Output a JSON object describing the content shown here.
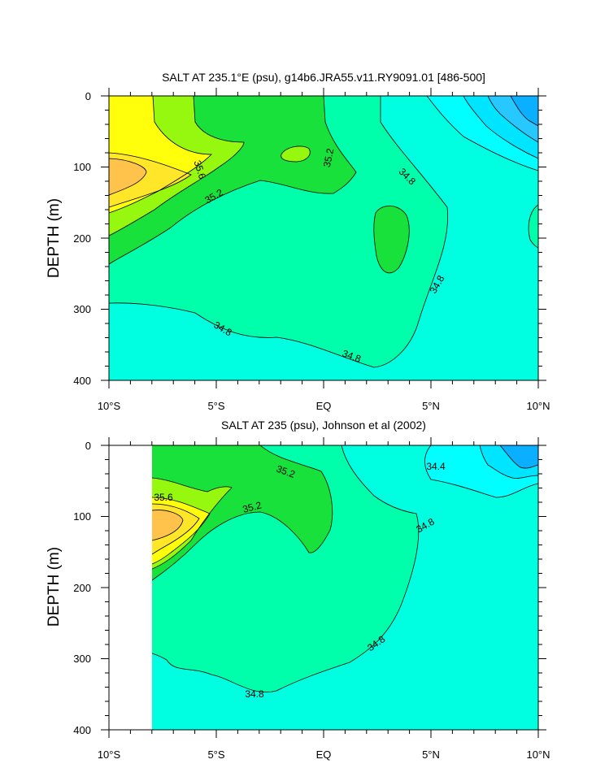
{
  "chart_data": [
    {
      "type": "contour",
      "title": "SALT AT 235.1°E (psu), g14b6.JRA55.v11.RY9091.01 [486-500]",
      "ylabel": "DEPTH (m)",
      "xlabel": "",
      "x_ticks": [
        "10°S",
        "5°S",
        "EQ",
        "5°N",
        "10°N"
      ],
      "x_tick_values": [
        -10,
        -5,
        0,
        5,
        10
      ],
      "y_ticks": [
        "0",
        "100",
        "200",
        "300",
        "400"
      ],
      "y_tick_values": [
        0,
        100,
        200,
        300,
        400
      ],
      "xlim": [
        -10,
        10
      ],
      "ylim": [
        400,
        0
      ],
      "y_reversed": true,
      "contour_interval": 0.2,
      "contour_labels": [
        "35.6",
        "35.2",
        "35.2",
        "34.8",
        "34.8",
        "34.8",
        "34.8"
      ],
      "colors": {
        "35.8+": "#FFC24A",
        "35.6-35.8": "#FFE629",
        "35.4-35.6": "#FFFF0C",
        "35.2-35.4": "#96F80F",
        "35.0-35.2": "#17E13A",
        "34.8-35.0": "#00FFAA",
        "34.6-34.8": "#00FFE0",
        "34.4-34.6": "#00FFFF",
        "34.2-34.4": "#00E5FF",
        "34.0-34.2": "#26C8FF",
        "<34.0": "#0AAFFF"
      }
    },
    {
      "type": "contour",
      "title": "SALT AT 235 (psu), Johnson et al (2002)",
      "ylabel": "DEPTH (m)",
      "xlabel": "",
      "x_ticks": [
        "10°S",
        "5°S",
        "EQ",
        "5°N",
        "10°N"
      ],
      "x_tick_values": [
        -10,
        -5,
        0,
        5,
        10
      ],
      "y_ticks": [
        "0",
        "100",
        "200",
        "300",
        "400"
      ],
      "y_tick_values": [
        0,
        100,
        200,
        300,
        400
      ],
      "xlim": [
        -10,
        10
      ],
      "ylim": [
        400,
        0
      ],
      "y_reversed": true,
      "data_x_range": [
        -8,
        10
      ],
      "data_depth_range": [
        10,
        400
      ],
      "contour_interval": 0.2,
      "contour_labels": [
        "35.6",
        "35.2",
        "35.2",
        "34.8",
        "34.8",
        "34.8",
        "34.4"
      ],
      "colors": {
        "35.8+": "#FFC24A",
        "35.6-35.8": "#FFE629",
        "35.4-35.6": "#FFFF0C",
        "35.2-35.4": "#96F80F",
        "35.0-35.2": "#17E13A",
        "34.8-35.0": "#00FFAA",
        "34.6-34.8": "#00FFE0",
        "34.4-34.6": "#00FFFF",
        "34.2-34.4": "#00E5FF",
        "34.0-34.2": "#26C8FF",
        "<34.0": "#0AAFFF"
      }
    }
  ]
}
